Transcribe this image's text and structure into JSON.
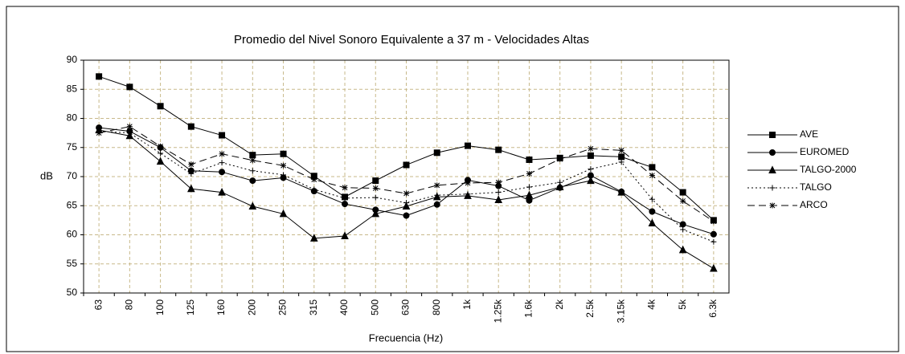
{
  "chart_data": {
    "type": "line",
    "title": "Promedio del Nivel Sonoro Equivalente a 37 m - Velocidades Altas",
    "x_label": "Frecuencia (Hz)",
    "y_label": "dB",
    "categories": [
      "63",
      "80",
      "100",
      "125",
      "160",
      "200",
      "250",
      "315",
      "400",
      "500",
      "630",
      "800",
      "1k",
      "1.25k",
      "1.6k",
      "2k",
      "2.5k",
      "3.15k",
      "4k",
      "5k",
      "6.3k"
    ],
    "ylim": [
      50,
      90
    ],
    "yticks": [
      50,
      55,
      60,
      65,
      70,
      75,
      80,
      85,
      90
    ],
    "grid": true,
    "series": [
      {
        "name": "AVE",
        "color": "#000000",
        "marker": "square",
        "dash": "solid",
        "values": [
          87.2,
          85.4,
          82.1,
          78.6,
          77.1,
          73.7,
          73.9,
          70.1,
          66.5,
          69.3,
          72.0,
          74.1,
          75.3,
          74.6,
          72.9,
          73.2,
          73.6,
          73.4,
          71.6,
          67.3,
          62.5
        ]
      },
      {
        "name": "EUROMED",
        "color": "#000000",
        "marker": "circle",
        "dash": "solid",
        "values": [
          78.4,
          77.8,
          75.0,
          71.0,
          70.8,
          69.3,
          69.8,
          67.5,
          65.3,
          64.3,
          63.3,
          65.2,
          69.4,
          68.4,
          65.9,
          68.1,
          70.2,
          67.4,
          64.0,
          61.8,
          60.1
        ]
      },
      {
        "name": "TALGO-2000",
        "color": "#000000",
        "marker": "triangle",
        "dash": "solid",
        "values": [
          78.0,
          77.0,
          72.6,
          67.9,
          67.3,
          64.9,
          63.6,
          59.4,
          59.8,
          63.6,
          64.9,
          66.5,
          66.7,
          66.0,
          66.8,
          68.2,
          69.3,
          67.3,
          62.0,
          57.4,
          54.2
        ]
      },
      {
        "name": "TALGO",
        "color": "#000000",
        "marker": "plus",
        "dash": "dotted",
        "values": [
          77.8,
          77.5,
          74.0,
          70.5,
          72.4,
          71.0,
          70.3,
          67.8,
          66.3,
          66.4,
          65.5,
          66.8,
          67.0,
          67.3,
          68.2,
          69.0,
          71.3,
          72.5,
          66.1,
          60.9,
          58.8
        ]
      },
      {
        "name": "ARCO",
        "color": "#000000",
        "marker": "asterisk",
        "dash": "dashed",
        "values": [
          77.5,
          78.6,
          75.2,
          72.1,
          73.9,
          72.8,
          71.9,
          69.5,
          68.1,
          68.0,
          67.1,
          68.5,
          68.9,
          69.0,
          70.5,
          73.0,
          74.8,
          74.5,
          70.2,
          65.8,
          62.3
        ]
      }
    ]
  }
}
